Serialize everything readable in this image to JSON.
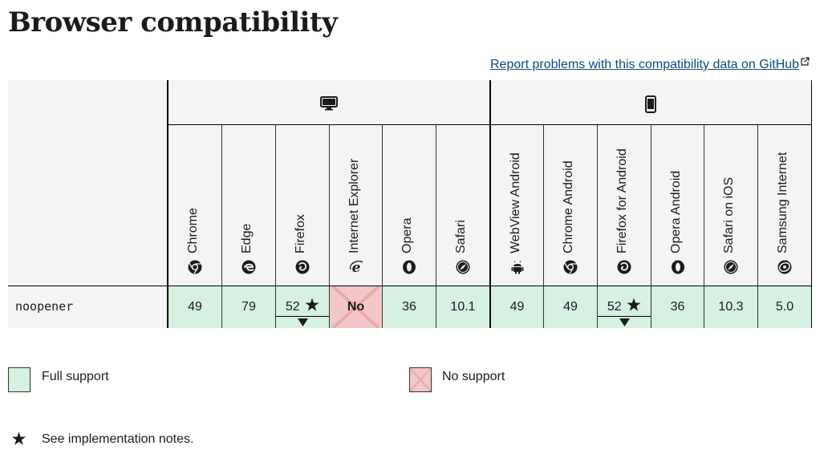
{
  "page": {
    "title": "Browser compatibility",
    "report_link": "Report problems with this compatibility data on GitHub"
  },
  "platforms": {
    "desktop_icon": "desktop-icon",
    "mobile_icon": "mobile-icon"
  },
  "browsers": [
    {
      "name": "Chrome",
      "icon": "chrome-icon"
    },
    {
      "name": "Edge",
      "icon": "edge-icon"
    },
    {
      "name": "Firefox",
      "icon": "firefox-icon"
    },
    {
      "name": "Internet Explorer",
      "icon": "ie-icon"
    },
    {
      "name": "Opera",
      "icon": "opera-icon"
    },
    {
      "name": "Safari",
      "icon": "safari-icon"
    },
    {
      "name": "WebView Android",
      "icon": "android-icon"
    },
    {
      "name": "Chrome Android",
      "icon": "chrome-icon"
    },
    {
      "name": "Firefox for Android",
      "icon": "firefox-icon"
    },
    {
      "name": "Opera Android",
      "icon": "opera-icon"
    },
    {
      "name": "Safari on iOS",
      "icon": "safari-icon"
    },
    {
      "name": "Samsung Internet",
      "icon": "samsung-icon"
    }
  ],
  "feature": {
    "name": "noopener",
    "support": [
      "49",
      "79",
      "52",
      "No",
      "36",
      "10.1",
      "49",
      "49",
      "52",
      "36",
      "10.3",
      "5.0"
    ]
  },
  "legend": {
    "full_support": "Full support",
    "no_support": "No support",
    "notes": "See implementation notes."
  },
  "colors": {
    "full_support": "#d4f1e1",
    "no_support": "#f3c7c7",
    "link": "#0c4b84"
  }
}
